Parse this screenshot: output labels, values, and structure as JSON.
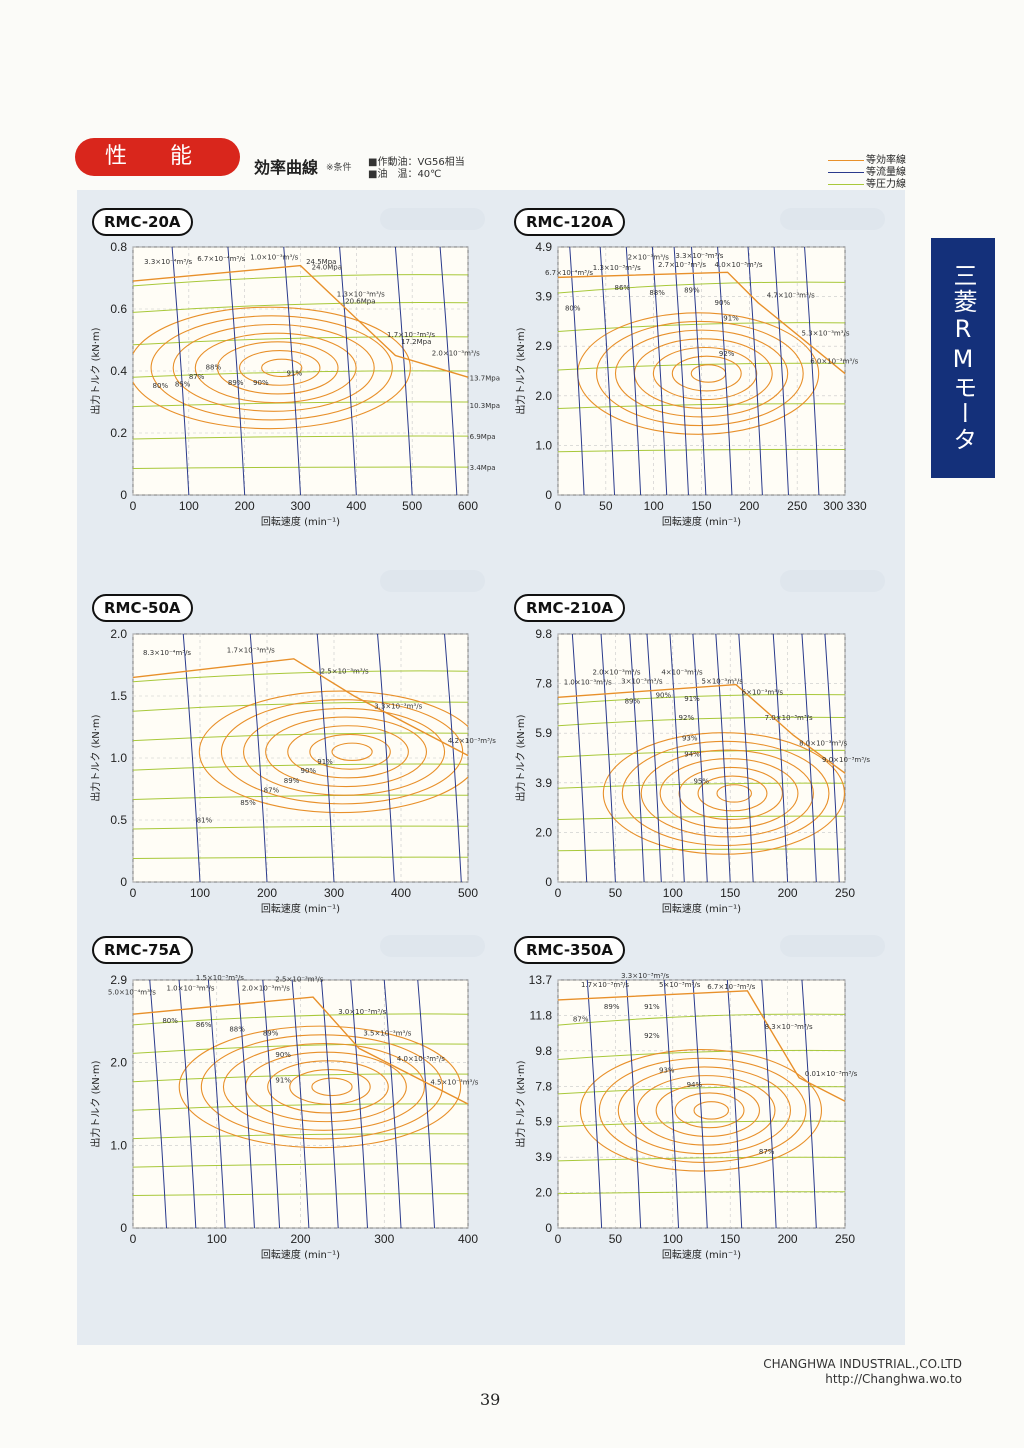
{
  "header": {
    "title": "性 能",
    "subtitle": "効率曲線",
    "cond_note": "※条件",
    "cond_oil": "■作動油：VG56相当",
    "cond_temp": "■油　温：40℃"
  },
  "legend": [
    {
      "label": "等効率線",
      "color": "#e8902a"
    },
    {
      "label": "等流量線",
      "color": "#2a3a8c"
    },
    {
      "label": "等圧力線",
      "color": "#a8c83a"
    }
  ],
  "side_tab": "三菱RMモータ",
  "footer": {
    "company": "CHANGHWA INDUSTRIAL.,CO.LTD",
    "url": "http://Changhwa.wo.to",
    "page": "39"
  },
  "colors": {
    "efficiency": "#e8902a",
    "flow": "#2a3a8c",
    "pressure": "#a8c83a",
    "accent": "#d9261c",
    "tab": "#14307a"
  },
  "chart_data": [
    {
      "type": "line",
      "title": "RMC-20A",
      "xlabel": "回転速度 (min⁻¹)",
      "ylabel": "出力トルク (kN·m)",
      "xticks": [
        "0",
        "100",
        "200",
        "300",
        "400",
        "500",
        "600"
      ],
      "yticks": [
        "0",
        "0.2",
        "0.4",
        "0.6",
        "0.8"
      ],
      "xlim": [
        0,
        600
      ],
      "ylim": [
        0,
        0.8
      ],
      "envelope": [
        [
          0,
          0.69
        ],
        [
          300,
          0.74
        ],
        [
          470,
          0.45
        ],
        [
          600,
          0.38
        ]
      ],
      "flow_x": [
        100,
        200,
        300,
        400,
        500,
        580
      ],
      "pressure_y": [
        0.09,
        0.19,
        0.3,
        0.4,
        0.51,
        0.62,
        0.71
      ],
      "eff_center": [
        270,
        0.41
      ],
      "eff_labels": [
        {
          "text": "80%",
          "x": 35,
          "y": 0.345
        },
        {
          "text": "85%",
          "x": 75,
          "y": 0.35
        },
        {
          "text": "87%",
          "x": 100,
          "y": 0.375
        },
        {
          "text": "88%",
          "x": 130,
          "y": 0.405
        },
        {
          "text": "89%",
          "x": 170,
          "y": 0.355
        },
        {
          "text": "90%",
          "x": 215,
          "y": 0.355
        },
        {
          "text": "91%",
          "x": 275,
          "y": 0.385
        }
      ],
      "annotations": [
        {
          "text": "3.3×10⁻⁴m³/s",
          "x": 20,
          "y": 0.745
        },
        {
          "text": "6.7×10⁻⁴m³/s",
          "x": 115,
          "y": 0.755
        },
        {
          "text": "1.0×10⁻³m³/s",
          "x": 210,
          "y": 0.76
        },
        {
          "text": "24.5Mpa",
          "x": 310,
          "y": 0.745
        },
        {
          "text": "24.0Mpa",
          "x": 320,
          "y": 0.728
        },
        {
          "text": "1.3×10⁻³m³/s",
          "x": 365,
          "y": 0.64
        },
        {
          "text": "20.6Mpa",
          "x": 380,
          "y": 0.617
        },
        {
          "text": "1.7×10⁻³m³/s",
          "x": 455,
          "y": 0.51
        },
        {
          "text": "17.2Mpa",
          "x": 480,
          "y": 0.487
        },
        {
          "text": "2.0×10⁻³m³/s",
          "x": 535,
          "y": 0.45
        },
        {
          "text": "13.7Mpa",
          "x": 603,
          "y": 0.37
        },
        {
          "text": "10.3Mpa",
          "x": 603,
          "y": 0.28
        },
        {
          "text": "6.9Mpa",
          "x": 603,
          "y": 0.18
        },
        {
          "text": "3.4Mpa",
          "x": 603,
          "y": 0.08
        }
      ]
    },
    {
      "type": "line",
      "title": "RMC-120A",
      "xlabel": "回転速度 (min⁻¹)",
      "ylabel": "出力トルク (kN·m)",
      "xticks": [
        "0",
        "50",
        "100",
        "150",
        "200",
        "250",
        "300 330"
      ],
      "yticks": [
        "0",
        "1.0",
        "2.0",
        "2.9",
        "3.9",
        "4.9"
      ],
      "xlim": [
        0,
        330
      ],
      "ylim": [
        0,
        4.9
      ],
      "envelope": [
        [
          0,
          4.3
        ],
        [
          195,
          4.4
        ],
        [
          230,
          3.8
        ],
        [
          330,
          2.4
        ]
      ],
      "flow_x": [
        30,
        65,
        95,
        125,
        150,
        170,
        200,
        235,
        265,
        300
      ],
      "pressure_y": [
        0.9,
        1.8,
        2.6,
        3.4,
        4.2
      ],
      "eff_center": [
        175,
        2.4
      ],
      "eff_labels": [
        {
          "text": "80%",
          "x": 8,
          "y": 3.65
        },
        {
          "text": "86%",
          "x": 65,
          "y": 4.05
        },
        {
          "text": "88%",
          "x": 105,
          "y": 3.95
        },
        {
          "text": "89%",
          "x": 145,
          "y": 4.0
        },
        {
          "text": "90%",
          "x": 180,
          "y": 3.75
        },
        {
          "text": "91%",
          "x": 190,
          "y": 3.45
        },
        {
          "text": "92%",
          "x": 185,
          "y": 2.75
        }
      ],
      "annotations": [
        {
          "text": "6.7×10⁻⁴m³/s",
          "x": -15,
          "y": 4.35
        },
        {
          "text": "1.3×10⁻³m³/s",
          "x": 40,
          "y": 4.45
        },
        {
          "text": "2×10⁻³m³/s",
          "x": 80,
          "y": 4.65
        },
        {
          "text": "2.7×10⁻³m³/s",
          "x": 115,
          "y": 4.5
        },
        {
          "text": "3.3×10⁻³m³/s",
          "x": 135,
          "y": 4.68
        },
        {
          "text": "4.0×10⁻³m³/s",
          "x": 180,
          "y": 4.5
        },
        {
          "text": "4.7×10⁻³m³/s",
          "x": 240,
          "y": 3.9
        },
        {
          "text": "5.3×10⁻³m³/s",
          "x": 280,
          "y": 3.15
        },
        {
          "text": "6.0×10⁻³m³/s",
          "x": 290,
          "y": 2.6
        }
      ]
    },
    {
      "type": "line",
      "title": "RMC-50A",
      "xlabel": "回転速度 (min⁻¹)",
      "ylabel": "出力トルク (kN·m)",
      "xticks": [
        "0",
        "100",
        "200",
        "300",
        "400",
        "500"
      ],
      "yticks": [
        "0",
        "0.5",
        "1.0",
        "1.5",
        "2.0"
      ],
      "xlim": [
        0,
        500
      ],
      "ylim": [
        0,
        2.0
      ],
      "envelope": [
        [
          0,
          1.65
        ],
        [
          240,
          1.8
        ],
        [
          330,
          1.5
        ],
        [
          500,
          1.02
        ]
      ],
      "flow_x": [
        100,
        200,
        300,
        390,
        490
      ],
      "pressure_y": [
        0.2,
        0.45,
        0.7,
        0.95,
        1.2,
        1.45,
        1.7
      ],
      "eff_center": [
        330,
        1.05
      ],
      "eff_labels": [
        {
          "text": "81%",
          "x": 95,
          "y": 0.48
        },
        {
          "text": "85%",
          "x": 160,
          "y": 0.62
        },
        {
          "text": "87%",
          "x": 195,
          "y": 0.72
        },
        {
          "text": "89%",
          "x": 225,
          "y": 0.8
        },
        {
          "text": "90%",
          "x": 250,
          "y": 0.88
        },
        {
          "text": "91%",
          "x": 275,
          "y": 0.95
        }
      ],
      "annotations": [
        {
          "text": "8.3×10⁻⁴m³/s",
          "x": 15,
          "y": 1.83
        },
        {
          "text": "1.7×10⁻³m³/s",
          "x": 140,
          "y": 1.85
        },
        {
          "text": "2.5×10⁻³m³/s",
          "x": 280,
          "y": 1.68
        },
        {
          "text": "3.3×10⁻³m³/s",
          "x": 360,
          "y": 1.4
        },
        {
          "text": "4.2×10⁻³m³/s",
          "x": 470,
          "y": 1.12
        }
      ]
    },
    {
      "type": "line",
      "title": "RMC-210A",
      "xlabel": "回転速度 (min⁻¹)",
      "ylabel": "出力トルク (kN·m)",
      "xticks": [
        "0",
        "50",
        "100",
        "150",
        "200",
        "250"
      ],
      "yticks": [
        "0",
        "2.0",
        "3.9",
        "5.9",
        "7.8",
        "9.8"
      ],
      "xlim": [
        0,
        250
      ],
      "ylim": [
        0,
        9.8
      ],
      "envelope": [
        [
          0,
          7.3
        ],
        [
          155,
          7.8
        ],
        [
          205,
          5.8
        ],
        [
          250,
          4.3
        ]
      ],
      "flow_x": [
        25,
        50,
        75,
        90,
        110,
        130,
        150,
        170,
        200,
        225,
        245
      ],
      "pressure_y": [
        1.3,
        2.6,
        3.9,
        5.2,
        6.5,
        7.4
      ],
      "eff_center": [
        155,
        3.5
      ],
      "eff_labels": [
        {
          "text": "89%",
          "x": 58,
          "y": 7.05
        },
        {
          "text": "90%",
          "x": 85,
          "y": 7.3
        },
        {
          "text": "91%",
          "x": 110,
          "y": 7.15
        },
        {
          "text": "92%",
          "x": 105,
          "y": 6.4
        },
        {
          "text": "93%",
          "x": 108,
          "y": 5.6
        },
        {
          "text": "94%",
          "x": 110,
          "y": 4.95
        },
        {
          "text": "95%",
          "x": 118,
          "y": 3.9
        }
      ],
      "annotations": [
        {
          "text": "1.0×10⁻³m³/s",
          "x": 5,
          "y": 7.8
        },
        {
          "text": "2.0×10⁻³m³/s",
          "x": 30,
          "y": 8.2
        },
        {
          "text": "3×10⁻³m³/s",
          "x": 55,
          "y": 7.85
        },
        {
          "text": "4×10⁻³m³/s",
          "x": 90,
          "y": 8.2
        },
        {
          "text": "5×10⁻³m³/s",
          "x": 125,
          "y": 7.85
        },
        {
          "text": "6×10⁻³m³/s",
          "x": 160,
          "y": 7.4
        },
        {
          "text": "7.0×10⁻³m³/s",
          "x": 180,
          "y": 6.4
        },
        {
          "text": "8.0×10⁻³m³/s",
          "x": 210,
          "y": 5.4
        },
        {
          "text": "9.0×10⁻³m³/s",
          "x": 230,
          "y": 4.75
        }
      ]
    },
    {
      "type": "line",
      "title": "RMC-75A",
      "xlabel": "回転速度 (min⁻¹)",
      "ylabel": "出力トルク (kN·m)",
      "xticks": [
        "0",
        "100",
        "200",
        "300",
        "400"
      ],
      "yticks": [
        "0",
        "1.0",
        "2.0",
        "2.9"
      ],
      "xlim": [
        0,
        400
      ],
      "ylim": [
        0,
        2.9
      ],
      "envelope": [
        [
          0,
          2.5
        ],
        [
          215,
          2.7
        ],
        [
          270,
          2.1
        ],
        [
          400,
          1.45
        ]
      ],
      "flow_x": [
        40,
        75,
        110,
        145,
        175,
        210,
        245,
        280,
        320,
        360
      ],
      "pressure_y": [
        0.4,
        0.75,
        1.1,
        1.45,
        1.8,
        2.15,
        2.5
      ],
      "eff_center": [
        240,
        1.65
      ],
      "eff_labels": [
        {
          "text": "80%",
          "x": 35,
          "y": 2.4
        },
        {
          "text": "86%",
          "x": 75,
          "y": 2.35
        },
        {
          "text": "88%",
          "x": 115,
          "y": 2.3
        },
        {
          "text": "89%",
          "x": 155,
          "y": 2.25
        },
        {
          "text": "90%",
          "x": 170,
          "y": 2.0
        },
        {
          "text": "91%",
          "x": 170,
          "y": 1.7
        }
      ],
      "annotations": [
        {
          "text": "5.0×10⁻⁴m³/s",
          "x": -30,
          "y": 2.73
        },
        {
          "text": "1.0×10⁻³m³/s",
          "x": 40,
          "y": 2.78
        },
        {
          "text": "1.5×10⁻³m³/s",
          "x": 75,
          "y": 2.9
        },
        {
          "text": "2.0×10⁻³m³/s",
          "x": 130,
          "y": 2.78
        },
        {
          "text": "2.5×10⁻³m³/s",
          "x": 170,
          "y": 2.88
        },
        {
          "text": "3.0×10⁻³m³/s",
          "x": 245,
          "y": 2.5
        },
        {
          "text": "3.5×10⁻³m³/s",
          "x": 275,
          "y": 2.25
        },
        {
          "text": "4.0×10⁻³m³/s",
          "x": 315,
          "y": 1.95
        },
        {
          "text": "4.5×10⁻³m³/s",
          "x": 355,
          "y": 1.68
        }
      ]
    },
    {
      "type": "line",
      "title": "RMC-350A",
      "xlabel": "回転速度 (min⁻¹)",
      "ylabel": "出力トルク (kN·m)",
      "xticks": [
        "0",
        "50",
        "100",
        "150",
        "200",
        "250"
      ],
      "yticks": [
        "0",
        "2.0",
        "3.9",
        "5.9",
        "7.8",
        "9.8",
        "11.8",
        "13.7"
      ],
      "xlim": [
        0,
        250
      ],
      "ylim": [
        0,
        13.7
      ],
      "envelope": [
        [
          0,
          12.6
        ],
        [
          165,
          13.1
        ],
        [
          210,
          8.3
        ],
        [
          250,
          7.0
        ]
      ],
      "flow_x": [
        38,
        72,
        105,
        130,
        160,
        190,
        225
      ],
      "pressure_y": [
        2.0,
        3.9,
        5.9,
        7.8,
        9.8,
        11.8
      ],
      "eff_center": [
        135,
        6.5
      ],
      "eff_labels": [
        {
          "text": "87%",
          "x": 13,
          "y": 11.4
        },
        {
          "text": "89%",
          "x": 40,
          "y": 12.1
        },
        {
          "text": "91%",
          "x": 75,
          "y": 12.1
        },
        {
          "text": "92%",
          "x": 75,
          "y": 10.5
        },
        {
          "text": "93%",
          "x": 88,
          "y": 8.6
        },
        {
          "text": "94%",
          "x": 112,
          "y": 7.8
        },
        {
          "text": "87%",
          "x": 175,
          "y": 4.1
        }
      ],
      "annotations": [
        {
          "text": "1.7×10⁻³m³/s",
          "x": 20,
          "y": 13.3
        },
        {
          "text": "3.3×10⁻³m³/s",
          "x": 55,
          "y": 13.8
        },
        {
          "text": "5×10⁻³m³/s",
          "x": 88,
          "y": 13.3
        },
        {
          "text": "6.7×10⁻³m³/s",
          "x": 130,
          "y": 13.2
        },
        {
          "text": "8.3×10⁻³m³/s",
          "x": 180,
          "y": 11.0
        },
        {
          "text": "0.01×10⁻³m³/s",
          "x": 215,
          "y": 8.4
        }
      ]
    }
  ]
}
